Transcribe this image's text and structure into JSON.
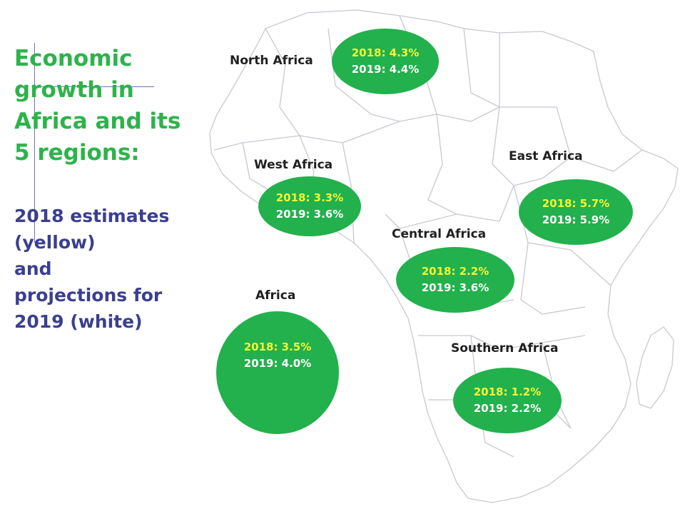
{
  "title_lines": [
    "Economic",
    "growth in",
    "Africa and its",
    "5 regions:"
  ],
  "subtitle_lines": [
    "2018 estimates",
    "(yellow)",
    "and",
    "projections for",
    "2019 (white)"
  ],
  "colors": {
    "bubble": "#22b14c",
    "value_2018": "#f5f535",
    "value_2019": "#ffffff",
    "title": "#2db34a",
    "subtitle": "#3a3f8f",
    "map_border": "#c8c8d2"
  },
  "regions": {
    "north": {
      "name": "North Africa",
      "growth_2018": "2018: 4.3%",
      "growth_2019": "2019: 4.4%"
    },
    "west": {
      "name": "West Africa",
      "growth_2018": "2018: 3.3%",
      "growth_2019": "2019: 3.6%"
    },
    "east": {
      "name": "East Africa",
      "growth_2018": "2018: 5.7%",
      "growth_2019": "2019: 5.9%"
    },
    "central": {
      "name": "Central Africa",
      "growth_2018": "2018: 2.2%",
      "growth_2019": "2019: 3.6%"
    },
    "africa": {
      "name": "Africa",
      "growth_2018": "2018: 3.5%",
      "growth_2019": "2019: 4.0%"
    },
    "southern": {
      "name": "Southern Africa",
      "growth_2018": "2018: 1.2%",
      "growth_2019": "2019: 2.2%"
    }
  }
}
